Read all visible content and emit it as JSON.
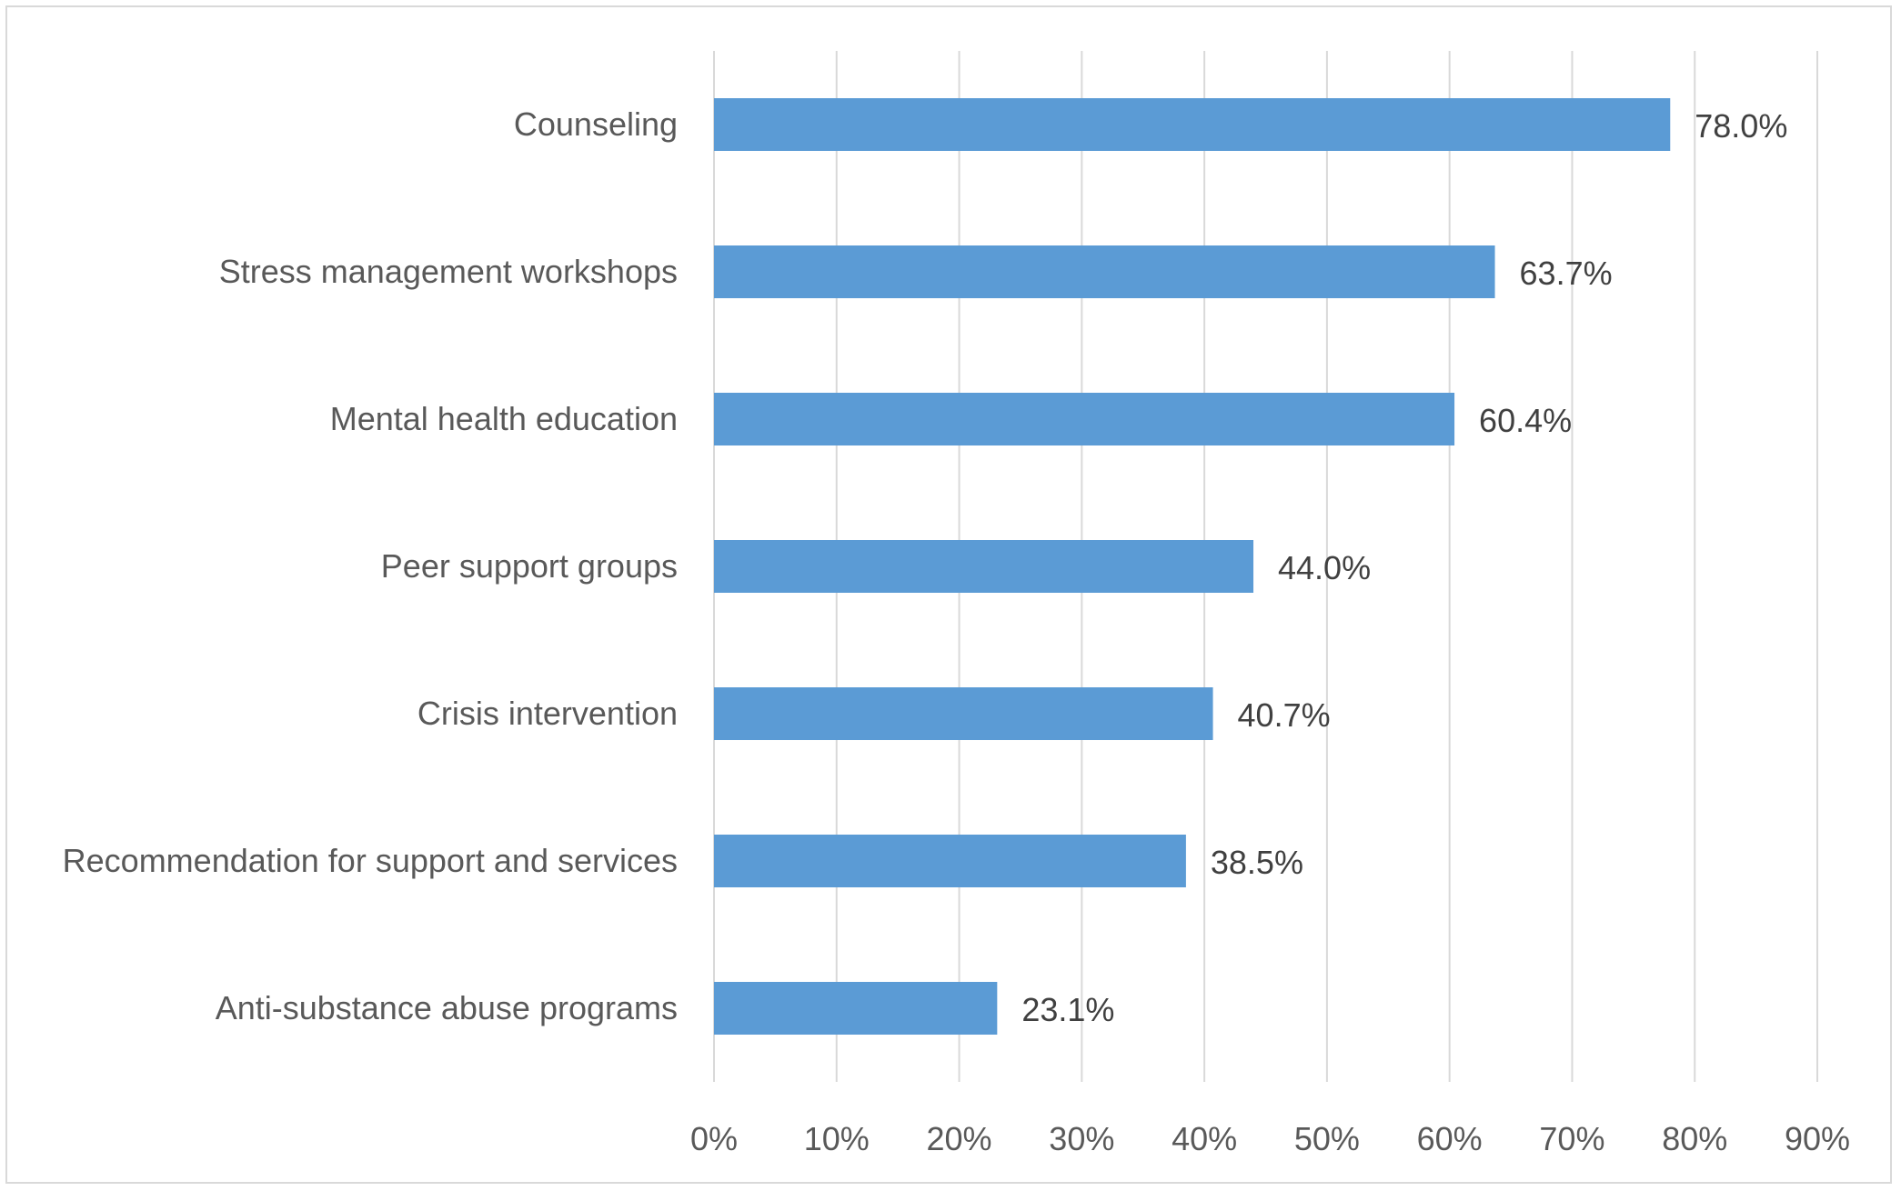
{
  "chart_data": {
    "type": "bar",
    "orientation": "horizontal",
    "title": "",
    "xlabel": "",
    "ylabel": "",
    "categories": [
      "Counseling",
      "Stress management workshops",
      "Mental health education",
      "Peer support groups",
      "Crisis intervention",
      "Recommendation for support and services",
      "Anti-substance abuse programs"
    ],
    "values": [
      78.0,
      63.7,
      60.4,
      44.0,
      40.7,
      38.5,
      23.1
    ],
    "value_labels": [
      "78.0%",
      "63.7%",
      "60.4%",
      "44.0%",
      "40.7%",
      "38.5%",
      "23.1%"
    ],
    "xlim": [
      0,
      90
    ],
    "x_ticks": [
      0,
      10,
      20,
      30,
      40,
      50,
      60,
      70,
      80,
      90
    ],
    "x_tick_labels": [
      "0%",
      "10%",
      "20%",
      "30%",
      "40%",
      "50%",
      "60%",
      "70%",
      "80%",
      "90%"
    ],
    "grid": "vertical",
    "legend": "none",
    "bar_color": "#5b9bd5",
    "grid_color": "#d9d9d9"
  }
}
